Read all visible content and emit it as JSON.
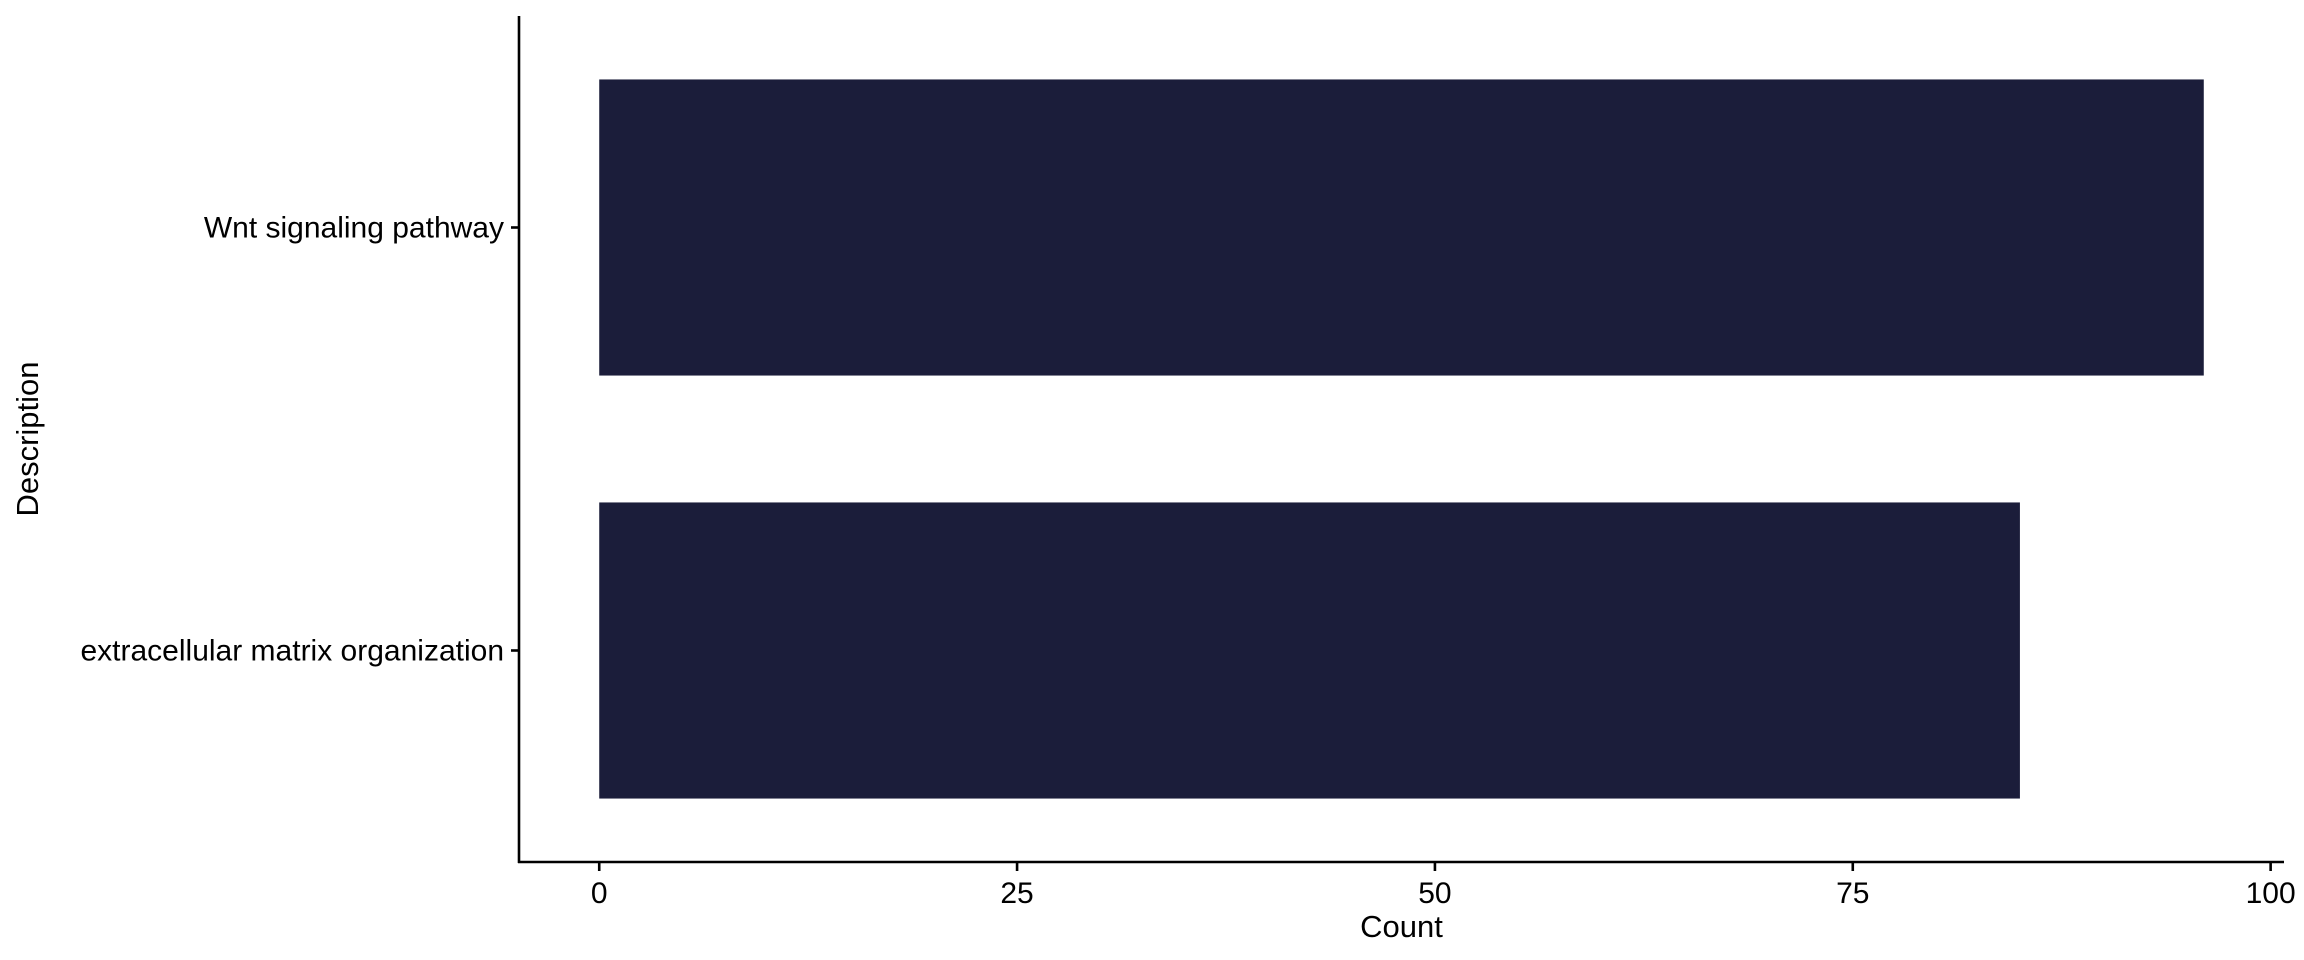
{
  "chart_data": {
    "type": "bar",
    "orientation": "horizontal",
    "categories": [
      "Wnt signaling pathway",
      "extracellular matrix organization"
    ],
    "values": [
      96,
      85
    ],
    "xlabel": "Count",
    "ylabel": "Description",
    "xlim": [
      -4.8,
      100.8
    ],
    "xticks": [
      0,
      25,
      50,
      75,
      100
    ],
    "grid": false,
    "legend": "none",
    "bar_color": "#1b1d3a"
  }
}
